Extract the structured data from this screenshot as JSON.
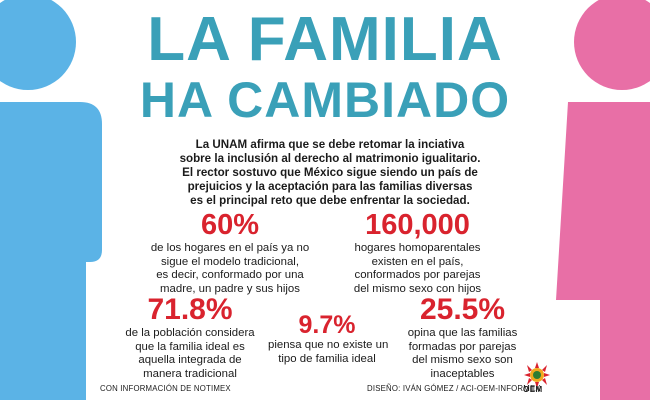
{
  "title": {
    "line1": "LA FAMILIA",
    "line2": "HA CAMBIADO"
  },
  "intro": {
    "lines": [
      "La UNAM afirma que se debe retomar la inciativa",
      "sobre la inclusión al derecho al matrimonio igualitario.",
      "El rector sostuvo que México sigue siendo un país de",
      "prejuicios y la aceptación para las familias diversas",
      "es el principal reto que debe enfrentar la sociedad."
    ]
  },
  "stats": [
    {
      "value": "60%",
      "lines": [
        "de los hogares en el país ya no",
        "sigue el modelo tradicional,",
        "es decir, conformado por una",
        "madre, un padre y sus hijos"
      ]
    },
    {
      "value": "160,000",
      "lines": [
        "hogares homoparentales",
        "existen en el país,",
        "conformados por parejas",
        "del mismo sexo con hijos"
      ]
    },
    {
      "value": "71.8%",
      "lines": [
        "de la población considera",
        "que la familia ideal es",
        "aquella integrada de",
        "manera tradicional"
      ]
    },
    {
      "value": "9.7%",
      "lines": [
        "piensa que no existe un",
        "tipo de familia ideal"
      ]
    },
    {
      "value": "25.5%",
      "lines": [
        "opina que las familias",
        "formadas por parejas",
        "del mismo sexo son",
        "inaceptables"
      ]
    }
  ],
  "footer": {
    "left": "CON INFORMACIÓN DE NOTIMEX",
    "right": "DISEÑO: IVÁN GÓMEZ / ACI-OEM-INFORMEX"
  },
  "logo": {
    "text": "OEM",
    "icon": "sun-logo-icon"
  },
  "colors": {
    "title": "#3aa0b8",
    "stat_value": "#d9232e",
    "male_figure": "#5bb3e6",
    "female_figure": "#e86fa6",
    "text": "#1b1b1b"
  },
  "icons": {
    "male": "male-figure-icon",
    "female": "female-figure-icon"
  }
}
